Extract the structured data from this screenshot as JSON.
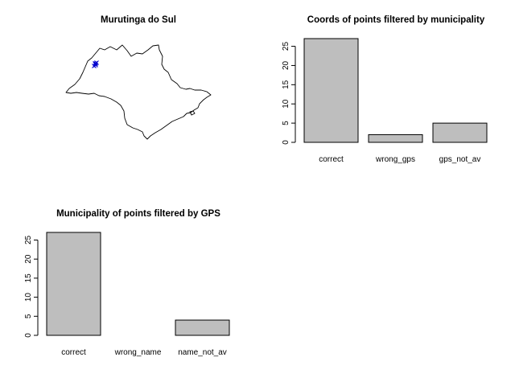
{
  "map_panel": {
    "title": "Murutinga do Sul",
    "point_color": "#0000cd",
    "outline_color": "#000000"
  },
  "chart_data": [
    {
      "type": "bar",
      "title": "Coords of points filtered by municipality",
      "categories": [
        "correct",
        "wrong_gps",
        "gps_not_av"
      ],
      "values": [
        27,
        2,
        5
      ],
      "ylim": [
        0,
        27
      ],
      "yticks": [
        0,
        5,
        10,
        15,
        20,
        25
      ],
      "xlabel": "",
      "ylabel": "",
      "bar_color": "#bebebe"
    },
    {
      "type": "bar",
      "title": "Municipality of points filtered by GPS",
      "categories": [
        "correct",
        "wrong_name",
        "name_not_av"
      ],
      "values": [
        27,
        0,
        4
      ],
      "ylim": [
        0,
        27
      ],
      "yticks": [
        0,
        5,
        10,
        15,
        20,
        25
      ],
      "xlabel": "",
      "ylabel": "",
      "bar_color": "#bebebe"
    }
  ]
}
